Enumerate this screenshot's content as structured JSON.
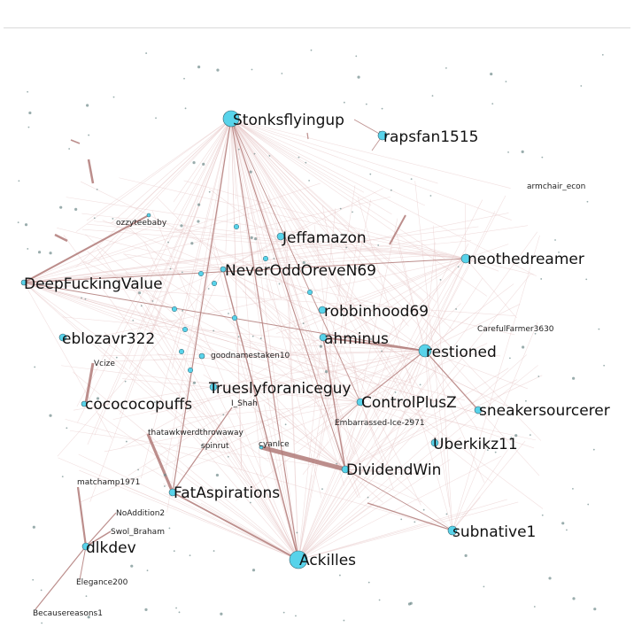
{
  "graph": {
    "colors": {
      "node_fill": "#58d3ea",
      "node_stroke": "#3a6470",
      "edge_strong": "#b07a78",
      "edge_faint": "#e6c4c4",
      "dot": "#6f8a8a"
    },
    "nodes": [
      {
        "id": "stonks",
        "label": "Stonksflyingup",
        "size": "large"
      },
      {
        "id": "rapsfan",
        "label": "rapsfan1515",
        "size": "large"
      },
      {
        "id": "armchair",
        "label": "armchair_econ",
        "size": "small"
      },
      {
        "id": "ozzy",
        "label": "ozzyteebaby",
        "size": "small"
      },
      {
        "id": "jeffamazon",
        "label": "Jeffamazon",
        "size": "large"
      },
      {
        "id": "neothedreamer",
        "label": "neothedreamer",
        "size": "large"
      },
      {
        "id": "neverodd",
        "label": "NeverOddOreveN69",
        "size": "large"
      },
      {
        "id": "dfv",
        "label": "DeepFuckingValue",
        "size": "large"
      },
      {
        "id": "robbinhood",
        "label": "robbinhood69",
        "size": "large"
      },
      {
        "id": "carefulfarmer",
        "label": "CarefulFarmer3630",
        "size": "small"
      },
      {
        "id": "eblozavr",
        "label": "eblozavr322",
        "size": "large"
      },
      {
        "id": "ahminus",
        "label": "ahminus",
        "size": "large"
      },
      {
        "id": "restioned",
        "label": "restioned",
        "size": "large"
      },
      {
        "id": "goodnames",
        "label": "goodnamestaken10",
        "size": "small"
      },
      {
        "id": "vcize",
        "label": "Vcize",
        "size": "small"
      },
      {
        "id": "truesly",
        "label": "Trueslyforaniceguy",
        "size": "large"
      },
      {
        "id": "cocococo",
        "label": "cocococopuffs",
        "size": "large"
      },
      {
        "id": "controlplusz",
        "label": "ControlPlusZ",
        "size": "large"
      },
      {
        "id": "ishah",
        "label": "I_Shah",
        "size": "small"
      },
      {
        "id": "sneaker",
        "label": "sneakersourcerer",
        "size": "large"
      },
      {
        "id": "embarrassed",
        "label": "Embarrassed-Ice-2971",
        "size": "small"
      },
      {
        "id": "thatawk",
        "label": "thatawkwerdthrowaway",
        "size": "small"
      },
      {
        "id": "uberkikz",
        "label": "Uberkikz11",
        "size": "large"
      },
      {
        "id": "spinrut",
        "label": "spinrut",
        "size": "small"
      },
      {
        "id": "cyanice",
        "label": "cyanIce",
        "size": "small"
      },
      {
        "id": "dividendwin",
        "label": "DividendWin",
        "size": "large"
      },
      {
        "id": "matchamp",
        "label": "matchamp1971",
        "size": "small"
      },
      {
        "id": "fataspirations",
        "label": "FatAspirations",
        "size": "large"
      },
      {
        "id": "noaddition",
        "label": "NoAddition2",
        "size": "small"
      },
      {
        "id": "subnative",
        "label": "subnative1",
        "size": "large"
      },
      {
        "id": "swolbraham",
        "label": "Swol_Braham",
        "size": "small"
      },
      {
        "id": "dlkdev",
        "label": "dlkdev",
        "size": "large"
      },
      {
        "id": "ackilles",
        "label": "Ackilles",
        "size": "large"
      },
      {
        "id": "elegance",
        "label": "Elegance200",
        "size": "small"
      },
      {
        "id": "becausereasons",
        "label": "Becausereasons1",
        "size": "small"
      }
    ]
  }
}
